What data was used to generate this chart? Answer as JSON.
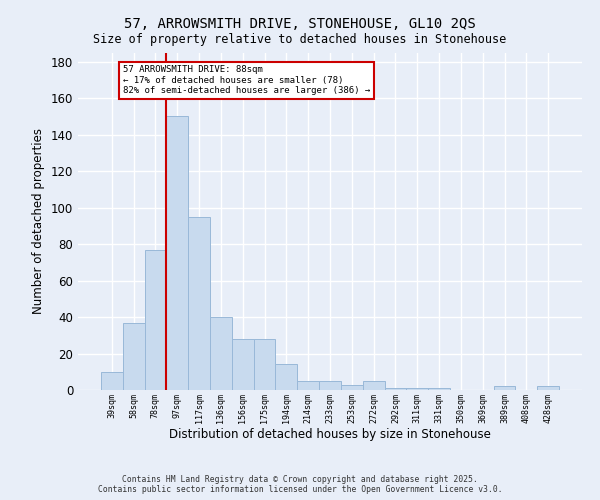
{
  "title": "57, ARROWSMITH DRIVE, STONEHOUSE, GL10 2QS",
  "subtitle": "Size of property relative to detached houses in Stonehouse",
  "xlabel": "Distribution of detached houses by size in Stonehouse",
  "ylabel": "Number of detached properties",
  "categories": [
    "39sqm",
    "58sqm",
    "78sqm",
    "97sqm",
    "117sqm",
    "136sqm",
    "156sqm",
    "175sqm",
    "194sqm",
    "214sqm",
    "233sqm",
    "253sqm",
    "272sqm",
    "292sqm",
    "311sqm",
    "331sqm",
    "350sqm",
    "369sqm",
    "389sqm",
    "408sqm",
    "428sqm"
  ],
  "values": [
    10,
    37,
    77,
    150,
    95,
    40,
    28,
    28,
    14,
    5,
    5,
    3,
    5,
    1,
    1,
    1,
    0,
    0,
    2,
    0,
    2
  ],
  "bar_color": "#c8daee",
  "bar_edge_color": "#99b8d8",
  "red_line_index": 2.5,
  "annotation_text": "57 ARROWSMITH DRIVE: 88sqm\n← 17% of detached houses are smaller (78)\n82% of semi-detached houses are larger (386) →",
  "annotation_box_facecolor": "#ffffff",
  "annotation_box_edgecolor": "#cc0000",
  "footer": "Contains HM Land Registry data © Crown copyright and database right 2025.\nContains public sector information licensed under the Open Government Licence v3.0.",
  "bg_color": "#e8eef8",
  "grid_color": "#ffffff",
  "ylim": [
    0,
    185
  ],
  "yticks": [
    0,
    20,
    40,
    60,
    80,
    100,
    120,
    140,
    160,
    180
  ]
}
